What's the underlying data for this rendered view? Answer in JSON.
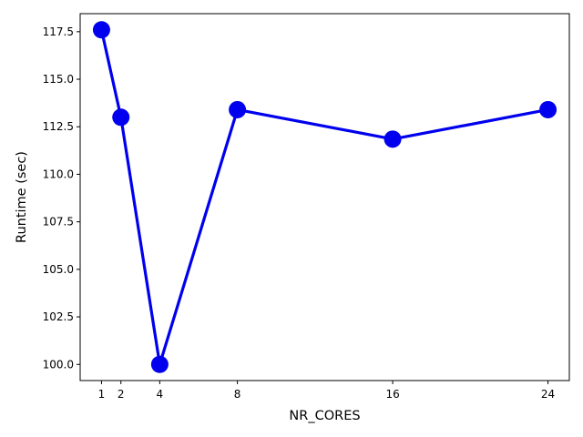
{
  "chart_data": {
    "type": "line",
    "title": "",
    "xlabel": "NR_CORES",
    "ylabel": "Runtime (sec)",
    "x": [
      1,
      2,
      4,
      8,
      16,
      24
    ],
    "xticks": [
      1,
      2,
      4,
      8,
      16,
      24
    ],
    "xlim": [
      -0.1,
      25.1
    ],
    "ylim": [
      99.15,
      118.45
    ],
    "yticks": [
      100.0,
      102.5,
      105.0,
      107.5,
      110.0,
      112.5,
      115.0,
      117.5
    ],
    "grid": false,
    "legend": "none",
    "series": [
      {
        "color": "#0000ee",
        "marker": "circle",
        "values": [
          117.6,
          113.0,
          100.0,
          113.4,
          111.85,
          113.4
        ]
      }
    ]
  }
}
